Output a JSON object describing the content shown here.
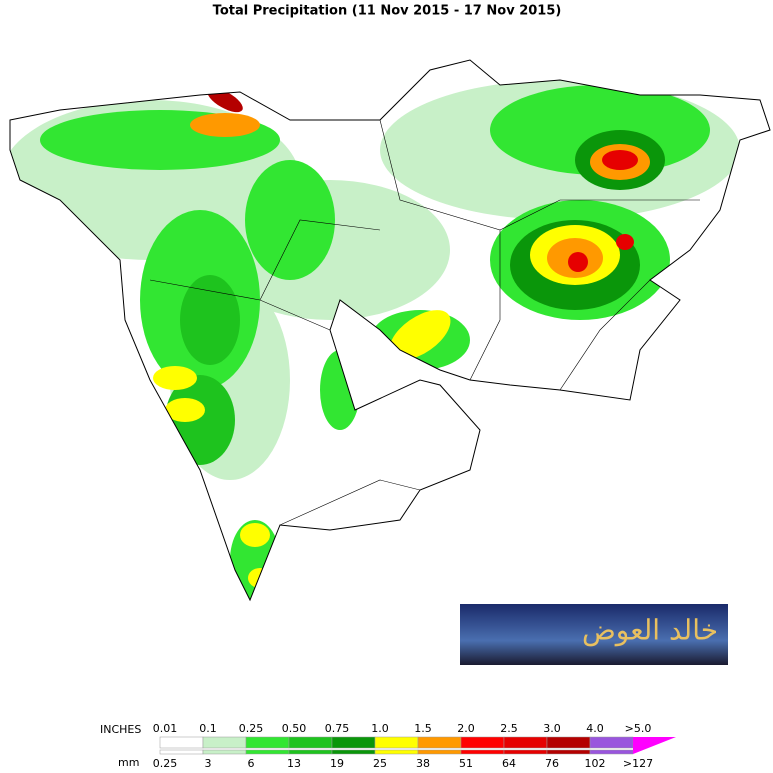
{
  "title": "Total Precipitation (11 Nov 2015 - 17 Nov 2015)",
  "logo": {
    "text": "خالد العوض"
  },
  "legend": {
    "inches_label": "INCHES",
    "mm_label": "mm",
    "inches": [
      "0.01",
      "0.1",
      "0.25",
      "0.50",
      "0.75",
      "1.0",
      "1.5",
      "2.0",
      "2.5",
      "3.0",
      "4.0",
      ">5.0"
    ],
    "mm": [
      "0.25",
      "3",
      "6",
      "13",
      "19",
      "25",
      "38",
      "51",
      "64",
      "76",
      "102",
      ">127"
    ],
    "colors": [
      "#ffffff",
      "#c8f0c8",
      "#32e632",
      "#1ec31e",
      "#0a960a",
      "#ffff00",
      "#ff9900",
      "#ff0000",
      "#e60000",
      "#b40000",
      "#9955dd",
      "#ff00ff"
    ]
  }
}
